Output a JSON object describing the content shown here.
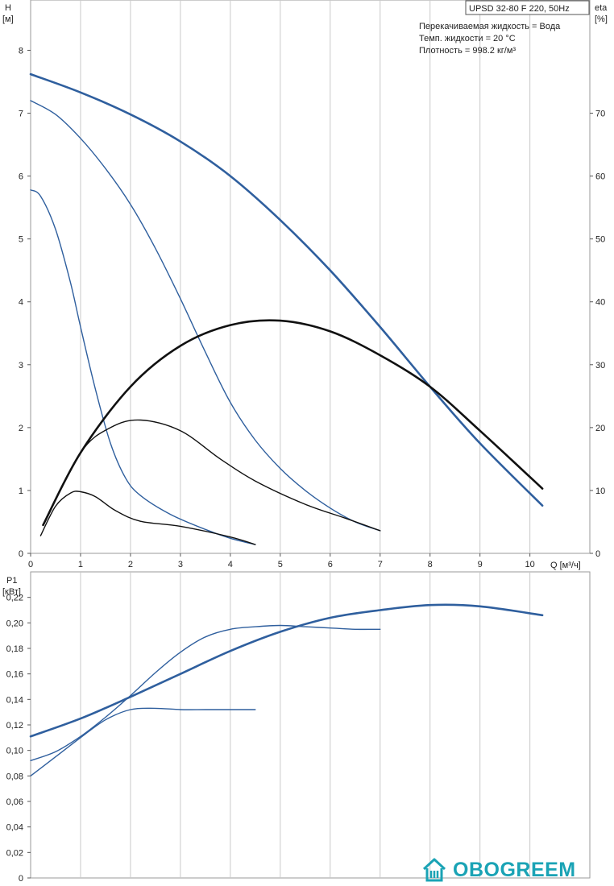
{
  "info": {
    "model": "UPSD 32-80 F 220, 50Hz",
    "liquid": "Перекачиваемая жидкость = Вода",
    "temp": "Темп. жидкости = 20 °C",
    "density": "Плотность = 998.2 кг/м³"
  },
  "watermark": {
    "text": "OBOGREEM",
    "color": "#1aa3b5"
  },
  "colors": {
    "blue": "#2f5f9e",
    "black": "#111111",
    "grid": "#c8c8c8"
  },
  "chart_data": [
    {
      "type": "line",
      "title": "",
      "xlabel": "Q [м³/ч]",
      "ylabel": "H\n[м]",
      "y2label": "eta\n[%]",
      "xlim": [
        0,
        11.2
      ],
      "ylim": [
        0,
        8.8
      ],
      "y2lim": [
        0,
        88
      ],
      "xticks": [
        0,
        1,
        2,
        3,
        4,
        5,
        6,
        7,
        8,
        9,
        10
      ],
      "yticks": [
        0,
        1,
        2,
        3,
        4,
        5,
        6,
        7,
        8
      ],
      "y2ticks": [
        0,
        10,
        20,
        30,
        40,
        50,
        60,
        70
      ],
      "grid": true,
      "series": [
        {
          "curve": "H",
          "speed": 3,
          "axis": "left",
          "x": [
            0,
            1,
            2,
            3,
            4,
            5,
            6,
            7,
            8,
            9,
            10.25
          ],
          "y": [
            7.62,
            7.33,
            6.98,
            6.55,
            6.0,
            5.3,
            4.5,
            3.6,
            2.65,
            1.75,
            0.76
          ]
        },
        {
          "curve": "H",
          "speed": 2,
          "axis": "left",
          "x": [
            0,
            0.5,
            1,
            1.5,
            2,
            2.5,
            3,
            3.5,
            4,
            4.5,
            5,
            5.5,
            6,
            6.5,
            7
          ],
          "y": [
            7.2,
            6.98,
            6.6,
            6.12,
            5.55,
            4.85,
            4.05,
            3.2,
            2.4,
            1.8,
            1.35,
            1.0,
            0.72,
            0.5,
            0.36
          ]
        },
        {
          "curve": "H",
          "speed": 1,
          "axis": "left",
          "x": [
            0,
            0.2,
            0.5,
            0.8,
            1.0,
            1.3,
            1.6,
            1.9,
            2.2,
            2.8,
            3.5,
            4.0,
            4.5
          ],
          "y": [
            5.78,
            5.68,
            5.15,
            4.3,
            3.6,
            2.6,
            1.75,
            1.2,
            0.92,
            0.62,
            0.38,
            0.24,
            0.14
          ]
        },
        {
          "curve": "eta",
          "speed": 3,
          "axis": "right",
          "x": [
            0.25,
            1,
            2,
            3,
            4,
            5,
            6,
            7,
            8,
            9,
            10.25
          ],
          "y": [
            4.5,
            16,
            26.5,
            33,
            36.3,
            37.0,
            35.3,
            31.5,
            26.5,
            19.5,
            10.3
          ]
        },
        {
          "curve": "eta",
          "speed": 2,
          "axis": "right",
          "x": [
            0.25,
            1,
            1.6,
            2.2,
            3,
            3.8,
            4.5,
            5.5,
            6.3,
            7
          ],
          "y": [
            4.5,
            16,
            20,
            21.2,
            19.5,
            15,
            11.5,
            7.8,
            5.6,
            3.6
          ]
        },
        {
          "curve": "eta",
          "speed": 1,
          "axis": "right",
          "x": [
            0.2,
            0.5,
            0.8,
            1.0,
            1.3,
            1.7,
            2.2,
            3,
            4.0,
            4.5
          ],
          "y": [
            2.8,
            7.5,
            9.6,
            9.8,
            9.0,
            6.8,
            5.1,
            4.3,
            2.6,
            1.4
          ]
        }
      ]
    },
    {
      "type": "line",
      "title": "",
      "xlabel": "",
      "ylabel": "P1\n[кВт]",
      "xlim": [
        0,
        11.2
      ],
      "ylim": [
        0,
        0.24
      ],
      "xticks": [
        0,
        1,
        2,
        3,
        4,
        5,
        6,
        7,
        8,
        9,
        10
      ],
      "yticks": [
        0,
        0.02,
        0.04,
        0.06,
        0.08,
        0.1,
        0.12,
        0.14,
        0.16,
        0.18,
        0.2,
        0.22
      ],
      "ytick_labels": [
        "0",
        "0,02",
        "0,04",
        "0,06",
        "0,08",
        "0,10",
        "0,12",
        "0,14",
        "0,16",
        "0,18",
        "0,20",
        "0,22"
      ],
      "grid": true,
      "series": [
        {
          "curve": "P1",
          "speed": 3,
          "x": [
            0,
            1,
            2,
            3,
            4,
            5,
            6,
            7,
            8,
            9,
            10.25
          ],
          "y": [
            0.111,
            0.125,
            0.142,
            0.16,
            0.178,
            0.193,
            0.204,
            0.21,
            0.214,
            0.213,
            0.206
          ]
        },
        {
          "curve": "P1",
          "speed": 2,
          "x": [
            0,
            0.5,
            1,
            1.5,
            2,
            2.5,
            3,
            3.5,
            4,
            4.5,
            5,
            5.5,
            6,
            6.5,
            7
          ],
          "y": [
            0.092,
            0.099,
            0.111,
            0.126,
            0.143,
            0.161,
            0.177,
            0.189,
            0.195,
            0.197,
            0.198,
            0.197,
            0.196,
            0.195,
            0.195
          ]
        },
        {
          "curve": "P1",
          "speed": 1,
          "x": [
            0,
            0.5,
            1,
            1.5,
            2,
            2.5,
            3,
            3.5,
            4,
            4.5
          ],
          "y": [
            0.08,
            0.095,
            0.11,
            0.124,
            0.132,
            0.133,
            0.132,
            0.132,
            0.132,
            0.132
          ]
        }
      ]
    }
  ]
}
